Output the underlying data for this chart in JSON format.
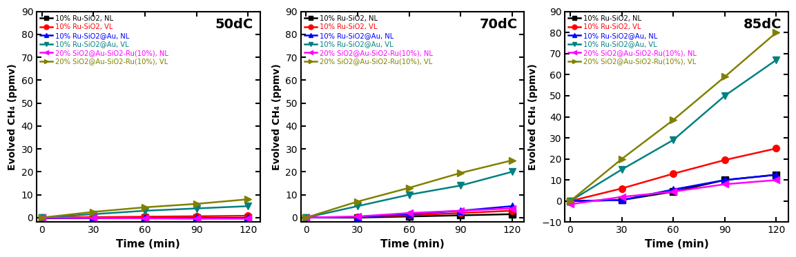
{
  "time": [
    0,
    30,
    60,
    90,
    120
  ],
  "panels": [
    {
      "label": "50dC",
      "ylim": [
        -2,
        90
      ],
      "yticks": [
        0,
        10,
        20,
        30,
        40,
        50,
        60,
        70,
        80,
        90
      ],
      "series": [
        {
          "name": "10% Ru-SiO2, NL",
          "color": "#000000",
          "marker": "s",
          "data": [
            0,
            0,
            0,
            0,
            0
          ]
        },
        {
          "name": "10% Ru-SiO2, VL",
          "color": "#ff0000",
          "marker": "o",
          "data": [
            0,
            0.2,
            0.4,
            0.6,
            0.8
          ]
        },
        {
          "name": "10% Ru-SiO2@Au, NL",
          "color": "#0000ff",
          "marker": "^",
          "data": [
            0,
            0,
            0,
            0,
            0
          ]
        },
        {
          "name": "10% Ru-SiO2@Au, VL",
          "color": "#008080",
          "marker": "v",
          "data": [
            0,
            1.5,
            3.0,
            4.0,
            5.0
          ]
        },
        {
          "name": "20% SiO2@Au-SiO2-Ru(10%), NL",
          "color": "#ff00ff",
          "marker": "<",
          "data": [
            0,
            -0.2,
            -0.3,
            -0.5,
            -0.5
          ]
        },
        {
          "name": "20% SiO2@Au-SiO2-Ru(10%), VL",
          "color": "#808000",
          "marker": ">",
          "data": [
            0,
            2.5,
            4.5,
            6.0,
            8.0
          ]
        }
      ]
    },
    {
      "label": "70dC",
      "ylim": [
        -2,
        90
      ],
      "yticks": [
        0,
        10,
        20,
        30,
        40,
        50,
        60,
        70,
        80,
        90
      ],
      "series": [
        {
          "name": "10% Ru-SiO2, NL",
          "color": "#000000",
          "marker": "s",
          "data": [
            0,
            0,
            0.5,
            1.0,
            1.5
          ]
        },
        {
          "name": "10% Ru-SiO2, VL",
          "color": "#ff0000",
          "marker": "o",
          "data": [
            0,
            0.3,
            1.0,
            2.0,
            3.0
          ]
        },
        {
          "name": "10% Ru-SiO2@Au, NL",
          "color": "#0000ff",
          "marker": "^",
          "data": [
            0,
            0.2,
            1.5,
            3.0,
            5.0
          ]
        },
        {
          "name": "10% Ru-SiO2@Au, VL",
          "color": "#008080",
          "marker": "v",
          "data": [
            0,
            5.0,
            10.0,
            14.0,
            20.0
          ]
        },
        {
          "name": "20% SiO2@Au-SiO2-Ru(10%), NL",
          "color": "#ff00ff",
          "marker": "<",
          "data": [
            0,
            0.5,
            2.0,
            3.0,
            4.0
          ]
        },
        {
          "name": "20% SiO2@Au-SiO2-Ru(10%), VL",
          "color": "#808000",
          "marker": ">",
          "data": [
            0,
            7.0,
            13.0,
            19.5,
            25.0
          ]
        }
      ]
    },
    {
      "label": "85dC",
      "ylim": [
        -10,
        90
      ],
      "yticks": [
        -10,
        0,
        10,
        20,
        30,
        40,
        50,
        60,
        70,
        80,
        90
      ],
      "series": [
        {
          "name": "10% Ru-SiO2, NL",
          "color": "#000000",
          "marker": "s",
          "data": [
            0,
            0.5,
            4.5,
            10.0,
            12.5
          ]
        },
        {
          "name": "10% Ru-SiO2, VL",
          "color": "#ff0000",
          "marker": "o",
          "data": [
            0,
            6.0,
            13.0,
            19.5,
            25.0
          ]
        },
        {
          "name": "10% Ru-SiO2@Au, NL",
          "color": "#0000ff",
          "marker": "^",
          "data": [
            0,
            0.5,
            5.5,
            10.0,
            12.5
          ]
        },
        {
          "name": "10% Ru-SiO2@Au, VL",
          "color": "#008080",
          "marker": "v",
          "data": [
            0,
            15.0,
            29.0,
            50.0,
            67.0
          ]
        },
        {
          "name": "20% SiO2@Au-SiO2-Ru(10%), NL",
          "color": "#ff00ff",
          "marker": "<",
          "data": [
            -1.5,
            2.0,
            4.5,
            8.0,
            10.0
          ]
        },
        {
          "name": "20% SiO2@Au-SiO2-Ru(10%), VL",
          "color": "#808000",
          "marker": ">",
          "data": [
            0,
            20.0,
            38.5,
            59.0,
            80.0
          ]
        }
      ]
    }
  ],
  "xlabel": "Time (min)",
  "ylabel": "Evolved CH₄ (ppmv)",
  "xticks": [
    0,
    30,
    60,
    90,
    120
  ],
  "markersize": 7,
  "linewidth": 1.8,
  "legend_fontsize": 7.2,
  "label_fontsize": 11,
  "tick_fontsize": 10,
  "panel_label_fontsize": 14
}
